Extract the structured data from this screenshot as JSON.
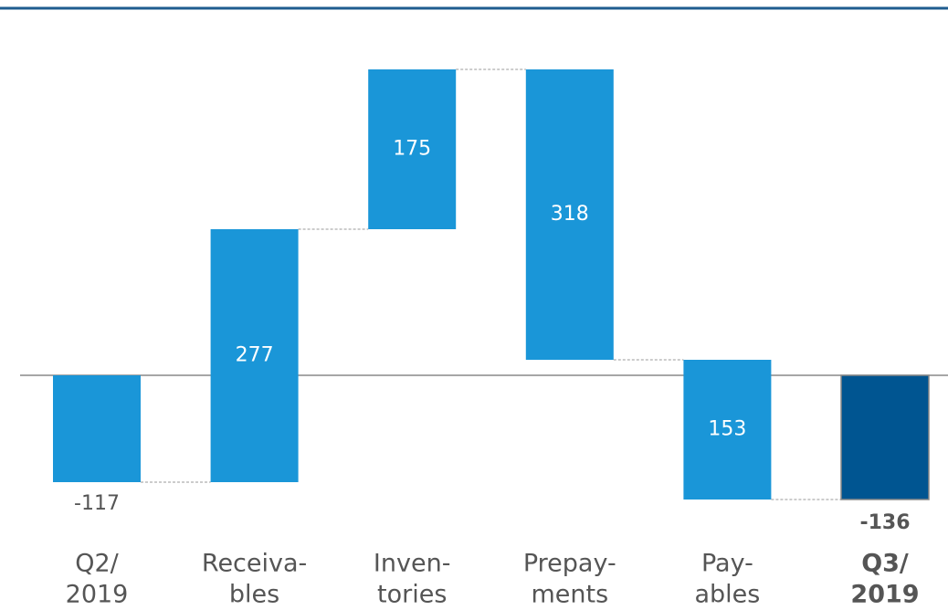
{
  "chart_data": {
    "type": "waterfall",
    "categories": [
      [
        "Q2/",
        "2019"
      ],
      [
        "Receiva-",
        "bles"
      ],
      [
        "Inven-",
        "tories"
      ],
      [
        "Prepay-",
        "ments"
      ],
      [
        "Pay-",
        "ables"
      ],
      [
        "Q3/",
        "2019"
      ]
    ],
    "measure": [
      "absolute",
      "relative",
      "relative",
      "relative",
      "relative",
      "total"
    ],
    "values": [
      -117,
      277,
      175,
      -318,
      -153,
      -136
    ],
    "value_labels": [
      "-117",
      "277",
      "175",
      "318",
      "153",
      "-136"
    ],
    "color": "#1a96d8",
    "total_color": "#005591"
  }
}
